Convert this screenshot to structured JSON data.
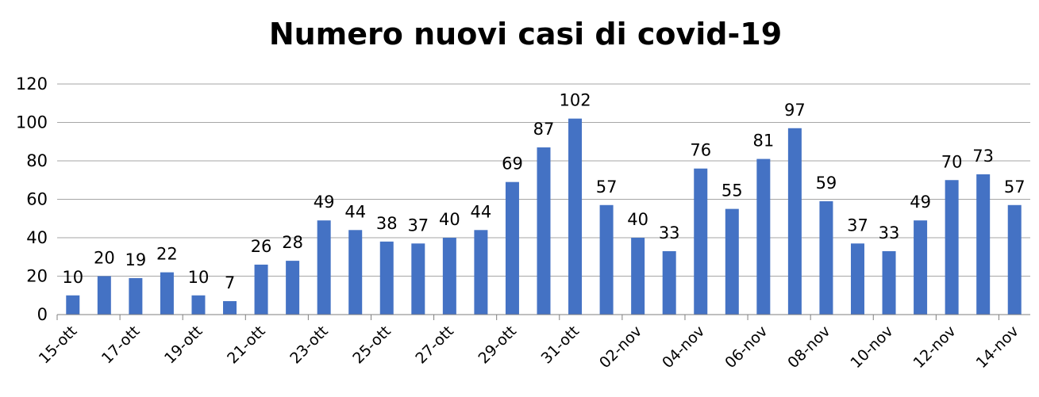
{
  "chart_data": {
    "type": "bar",
    "title": "Numero nuovi casi di covid-19",
    "xlabel": "",
    "ylabel": "",
    "ylim": [
      0,
      120
    ],
    "yticks": [
      0,
      20,
      40,
      60,
      80,
      100,
      120
    ],
    "grid": true,
    "legend": "none",
    "bar_color": "#4472c4",
    "categories": [
      "15-ott",
      "16-ott",
      "17-ott",
      "18-ott",
      "19-ott",
      "20-ott",
      "21-ott",
      "22-ott",
      "23-ott",
      "24-ott",
      "25-ott",
      "26-ott",
      "27-ott",
      "28-ott",
      "29-ott",
      "30-ott",
      "31-ott",
      "01-nov",
      "02-nov",
      "03-nov",
      "04-nov",
      "05-nov",
      "06-nov",
      "07-nov",
      "08-nov",
      "09-nov",
      "10-nov",
      "11-nov",
      "12-nov",
      "13-nov",
      "14-nov"
    ],
    "tick_labels": [
      "15-ott",
      "",
      "17-ott",
      "",
      "19-ott",
      "",
      "21-ott",
      "",
      "23-ott",
      "",
      "25-ott",
      "",
      "27-ott",
      "",
      "29-ott",
      "",
      "31-ott",
      "",
      "02-nov",
      "",
      "04-nov",
      "",
      "06-nov",
      "",
      "08-nov",
      "",
      "10-nov",
      "",
      "12-nov",
      "",
      "14-nov"
    ],
    "values": [
      10,
      20,
      19,
      22,
      10,
      7,
      26,
      28,
      49,
      44,
      38,
      37,
      40,
      44,
      69,
      87,
      102,
      57,
      40,
      33,
      76,
      55,
      81,
      97,
      59,
      37,
      33,
      49,
      70,
      73,
      57
    ]
  }
}
